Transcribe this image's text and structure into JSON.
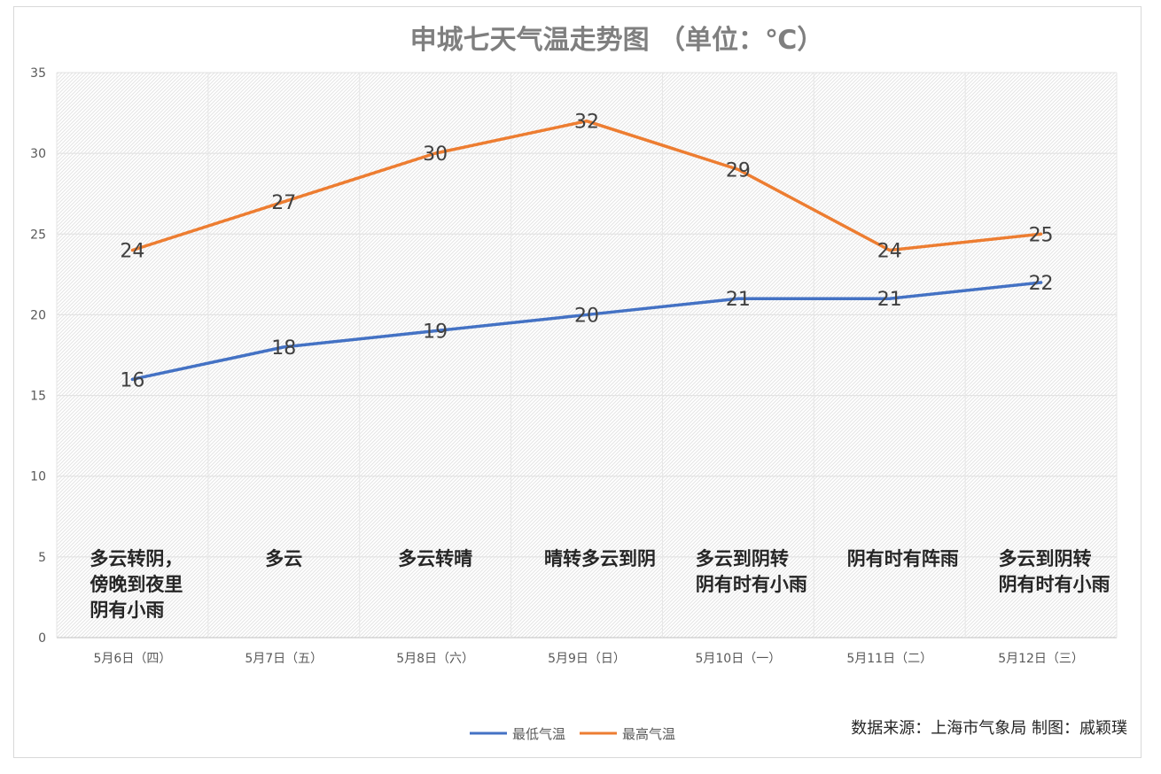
{
  "chart_data": {
    "type": "line",
    "title": "申城七天气温走势图    （单位：℃）",
    "categories": [
      "5月6日（四）",
      "5月7日（五）",
      "5月8日（六）",
      "5月9日（日）",
      "5月10日（一）",
      "5月11日（二）",
      "5月12日（三）"
    ],
    "ylim": [
      0,
      35
    ],
    "yticks": [
      0,
      5,
      10,
      15,
      20,
      25,
      30,
      35
    ],
    "grid": true,
    "legend_position": "bottom",
    "series": [
      {
        "name": "最低气温",
        "color": "#4472c4",
        "values": [
          16,
          18,
          19,
          20,
          21,
          21,
          22
        ]
      },
      {
        "name": "最高气温",
        "color": "#ed7d31",
        "values": [
          24,
          27,
          30,
          32,
          29,
          24,
          25
        ]
      }
    ],
    "weather": [
      [
        "多云转阴，",
        "傍晚到夜里",
        "阴有小雨"
      ],
      [
        "多云"
      ],
      [
        "多云转晴"
      ],
      [
        "晴转多云到阴"
      ],
      [
        "多云到阴转",
        "阴有时有小雨"
      ],
      [
        "阴有时有阵雨"
      ],
      [
        "多云到阴转",
        "阴有时有小雨"
      ]
    ],
    "source": "数据来源：上海市气象局   制图：戚颖璞"
  }
}
